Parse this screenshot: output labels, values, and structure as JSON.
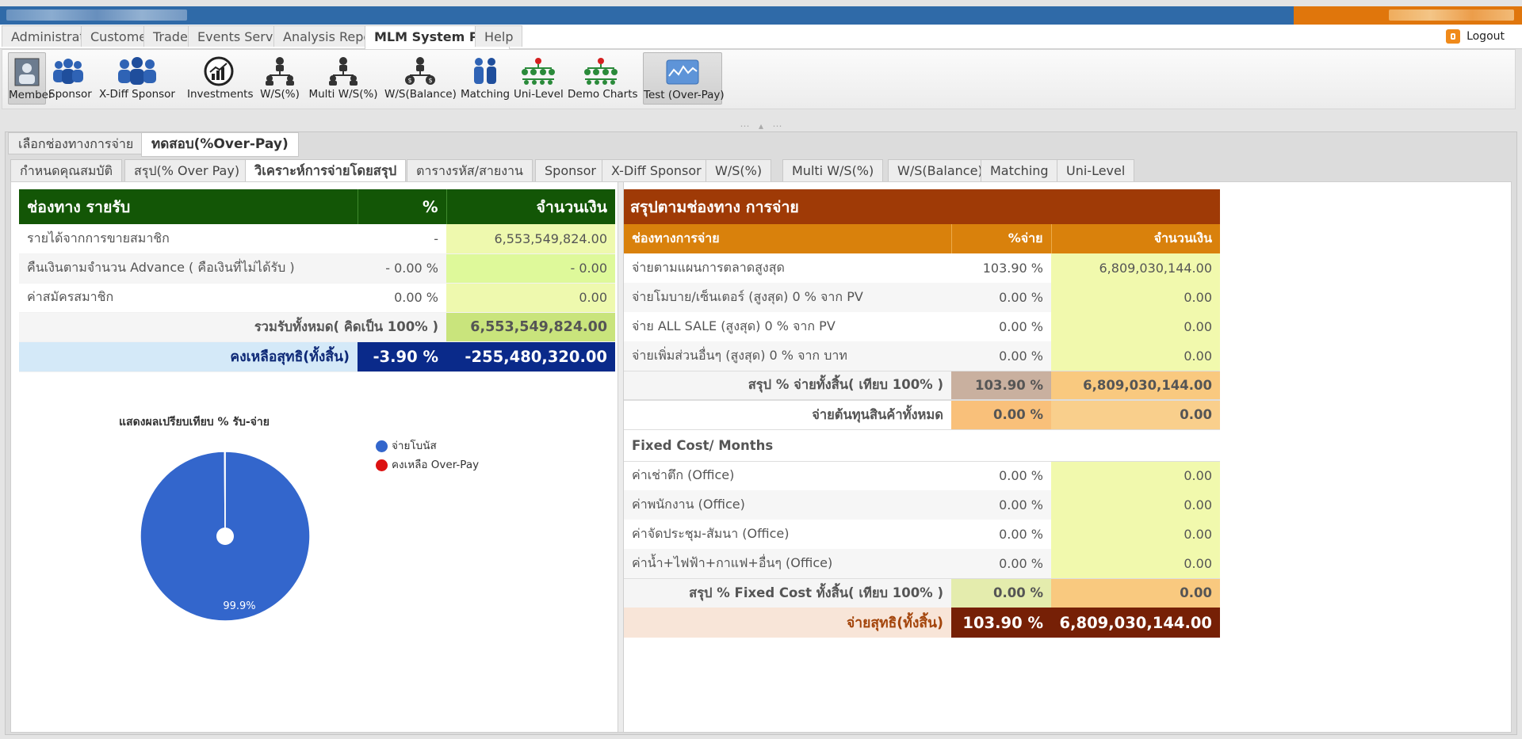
{
  "header": {
    "title_blurred": "",
    "user_blurred": "",
    "logout_label": "Logout"
  },
  "menu": {
    "tabs": [
      {
        "label": "Administrator"
      },
      {
        "label": "Customer"
      },
      {
        "label": "Trade"
      },
      {
        "label": "Events Service"
      },
      {
        "label": "Analysis Report"
      },
      {
        "label": "MLM System Plan"
      },
      {
        "label": "Help"
      }
    ],
    "active_tab": "MLM System Plan"
  },
  "toolbar": {
    "items": [
      {
        "label": "Member",
        "icon": "member-icon"
      },
      {
        "label": "Sponsor",
        "icon": "sponsor-icon"
      },
      {
        "label": "X-Diff Sponsor",
        "icon": "x-diff-sponsor-icon"
      },
      {
        "label": "Investments",
        "icon": "investments-icon"
      },
      {
        "label": "W/S(%)",
        "icon": "ws-percent-icon"
      },
      {
        "label": "Multi W/S(%)",
        "icon": "multi-ws-icon"
      },
      {
        "label": "W/S(Balance)",
        "icon": "ws-balance-icon"
      },
      {
        "label": "Matching",
        "icon": "matching-icon"
      },
      {
        "label": "Uni-Level",
        "icon": "uni-level-icon"
      },
      {
        "label": "Demo Charts",
        "icon": "demo-charts-icon"
      },
      {
        "label": "Test (Over-Pay)",
        "icon": "test-overpay-icon"
      }
    ]
  },
  "level1_tabs": [
    {
      "label": "เลือกช่องทางการจ่าย"
    },
    {
      "label": "ทดสอบ(%Over-Pay)"
    }
  ],
  "level2_tabs": [
    {
      "label": "กำหนดคุณสมบัติ"
    },
    {
      "label": "สรุป(% Over Pay)"
    },
    {
      "label": "วิเคราะห์การจ่ายโดยสรุป"
    },
    {
      "label": "ตารางรหัส/สายงาน"
    },
    {
      "label": "Sponsor"
    },
    {
      "label": "X-Diff Sponsor"
    },
    {
      "label": "W/S(%)"
    },
    {
      "label": "Multi W/S(%)"
    },
    {
      "label": "W/S(Balance)"
    },
    {
      "label": "Matching"
    },
    {
      "label": "Uni-Level"
    }
  ],
  "income": {
    "header": {
      "channel": "ช่องทาง รายรับ",
      "percent": "%",
      "amount": "จำนวนเงิน"
    },
    "rows": [
      {
        "label": "รายได้จากการขายสมาชิก",
        "percent": "-",
        "amount": "6,553,549,824.00"
      },
      {
        "label": "คืนเงินตามจำนวน Advance ( คือเงินที่ไม่ได้รับ )",
        "percent": "- 0.00 %",
        "amount": "- 0.00"
      },
      {
        "label": "ค่าสมัครสมาชิก",
        "percent": "0.00 %",
        "amount": "0.00"
      }
    ],
    "total": {
      "label": "รวมรับทั้งหมด( คิดเป็น 100% )",
      "amount": "6,553,549,824.00"
    },
    "net": {
      "label": "คงเหลือสุทธิ(ทั้งสิ้น)",
      "percent": "-3.90 %",
      "amount": "-255,480,320.00"
    }
  },
  "payout": {
    "title": "สรุปตามช่องทาง การจ่าย",
    "header": {
      "channel": "ช่องทางการจ่าย",
      "percent": "%จ่าย",
      "amount": "จำนวนเงิน"
    },
    "rows": [
      {
        "label": "จ่ายตามแผนการตลาดสูงสุด",
        "percent": "103.90 %",
        "amount": "6,809,030,144.00"
      },
      {
        "label": "จ่ายโมบาย/เซ็นเตอร์ (สูงสุด) 0 % จาก PV",
        "percent": "0.00 %",
        "amount": "0.00"
      },
      {
        "label": "จ่าย ALL SALE (สูงสุด) 0 % จาก PV",
        "percent": "0.00 %",
        "amount": "0.00"
      },
      {
        "label": "จ่ายเพิ่มส่วนอื่นๆ (สูงสุด) 0 % จาก บาท",
        "percent": "0.00 %",
        "amount": "0.00"
      }
    ],
    "sum": {
      "label": "สรุป % จ่ายทั้งสิ้น( เทียบ 100% )",
      "percent": "103.90 %",
      "amount": "6,809,030,144.00"
    },
    "cost": {
      "label": "จ่ายต้นทุนสินค้าทั้งหมด",
      "percent": "0.00 %",
      "amount": "0.00"
    },
    "fixed_title": "Fixed Cost/ Months",
    "fixed_rows": [
      {
        "label": "ค่าเช่าตึก (Office)",
        "percent": "0.00 %",
        "amount": "0.00"
      },
      {
        "label": "ค่าพนักงาน (Office)",
        "percent": "0.00 %",
        "amount": "0.00"
      },
      {
        "label": "ค่าจัดประชุม-สัมนา (Office)",
        "percent": "0.00 %",
        "amount": "0.00"
      },
      {
        "label": "ค่าน้ำ+ไฟฟ้า+กาแฟ+อื่นๆ (Office)",
        "percent": "0.00 %",
        "amount": "0.00"
      }
    ],
    "fixed_sum": {
      "label": "สรุป % Fixed Cost ทั้งสิ้น( เทียบ 100% )",
      "percent": "0.00 %",
      "amount": "0.00"
    },
    "net": {
      "label": "จ่ายสุทธิ(ทั้งสิ้น)",
      "percent": "103.90 %",
      "amount": "6,809,030,144.00"
    }
  },
  "chart_data": {
    "type": "pie",
    "title": "แสดงผลเปรียบเทียบ % รับ-จ่าย",
    "categories": [
      "จ่ายโบนัส",
      "คงเหลือ Over-Pay"
    ],
    "values": [
      99.9,
      0.1
    ],
    "colors": [
      "#3366cc",
      "#dc1212"
    ],
    "data_labels": [
      "99.9%",
      ""
    ],
    "legend_position": "right"
  }
}
